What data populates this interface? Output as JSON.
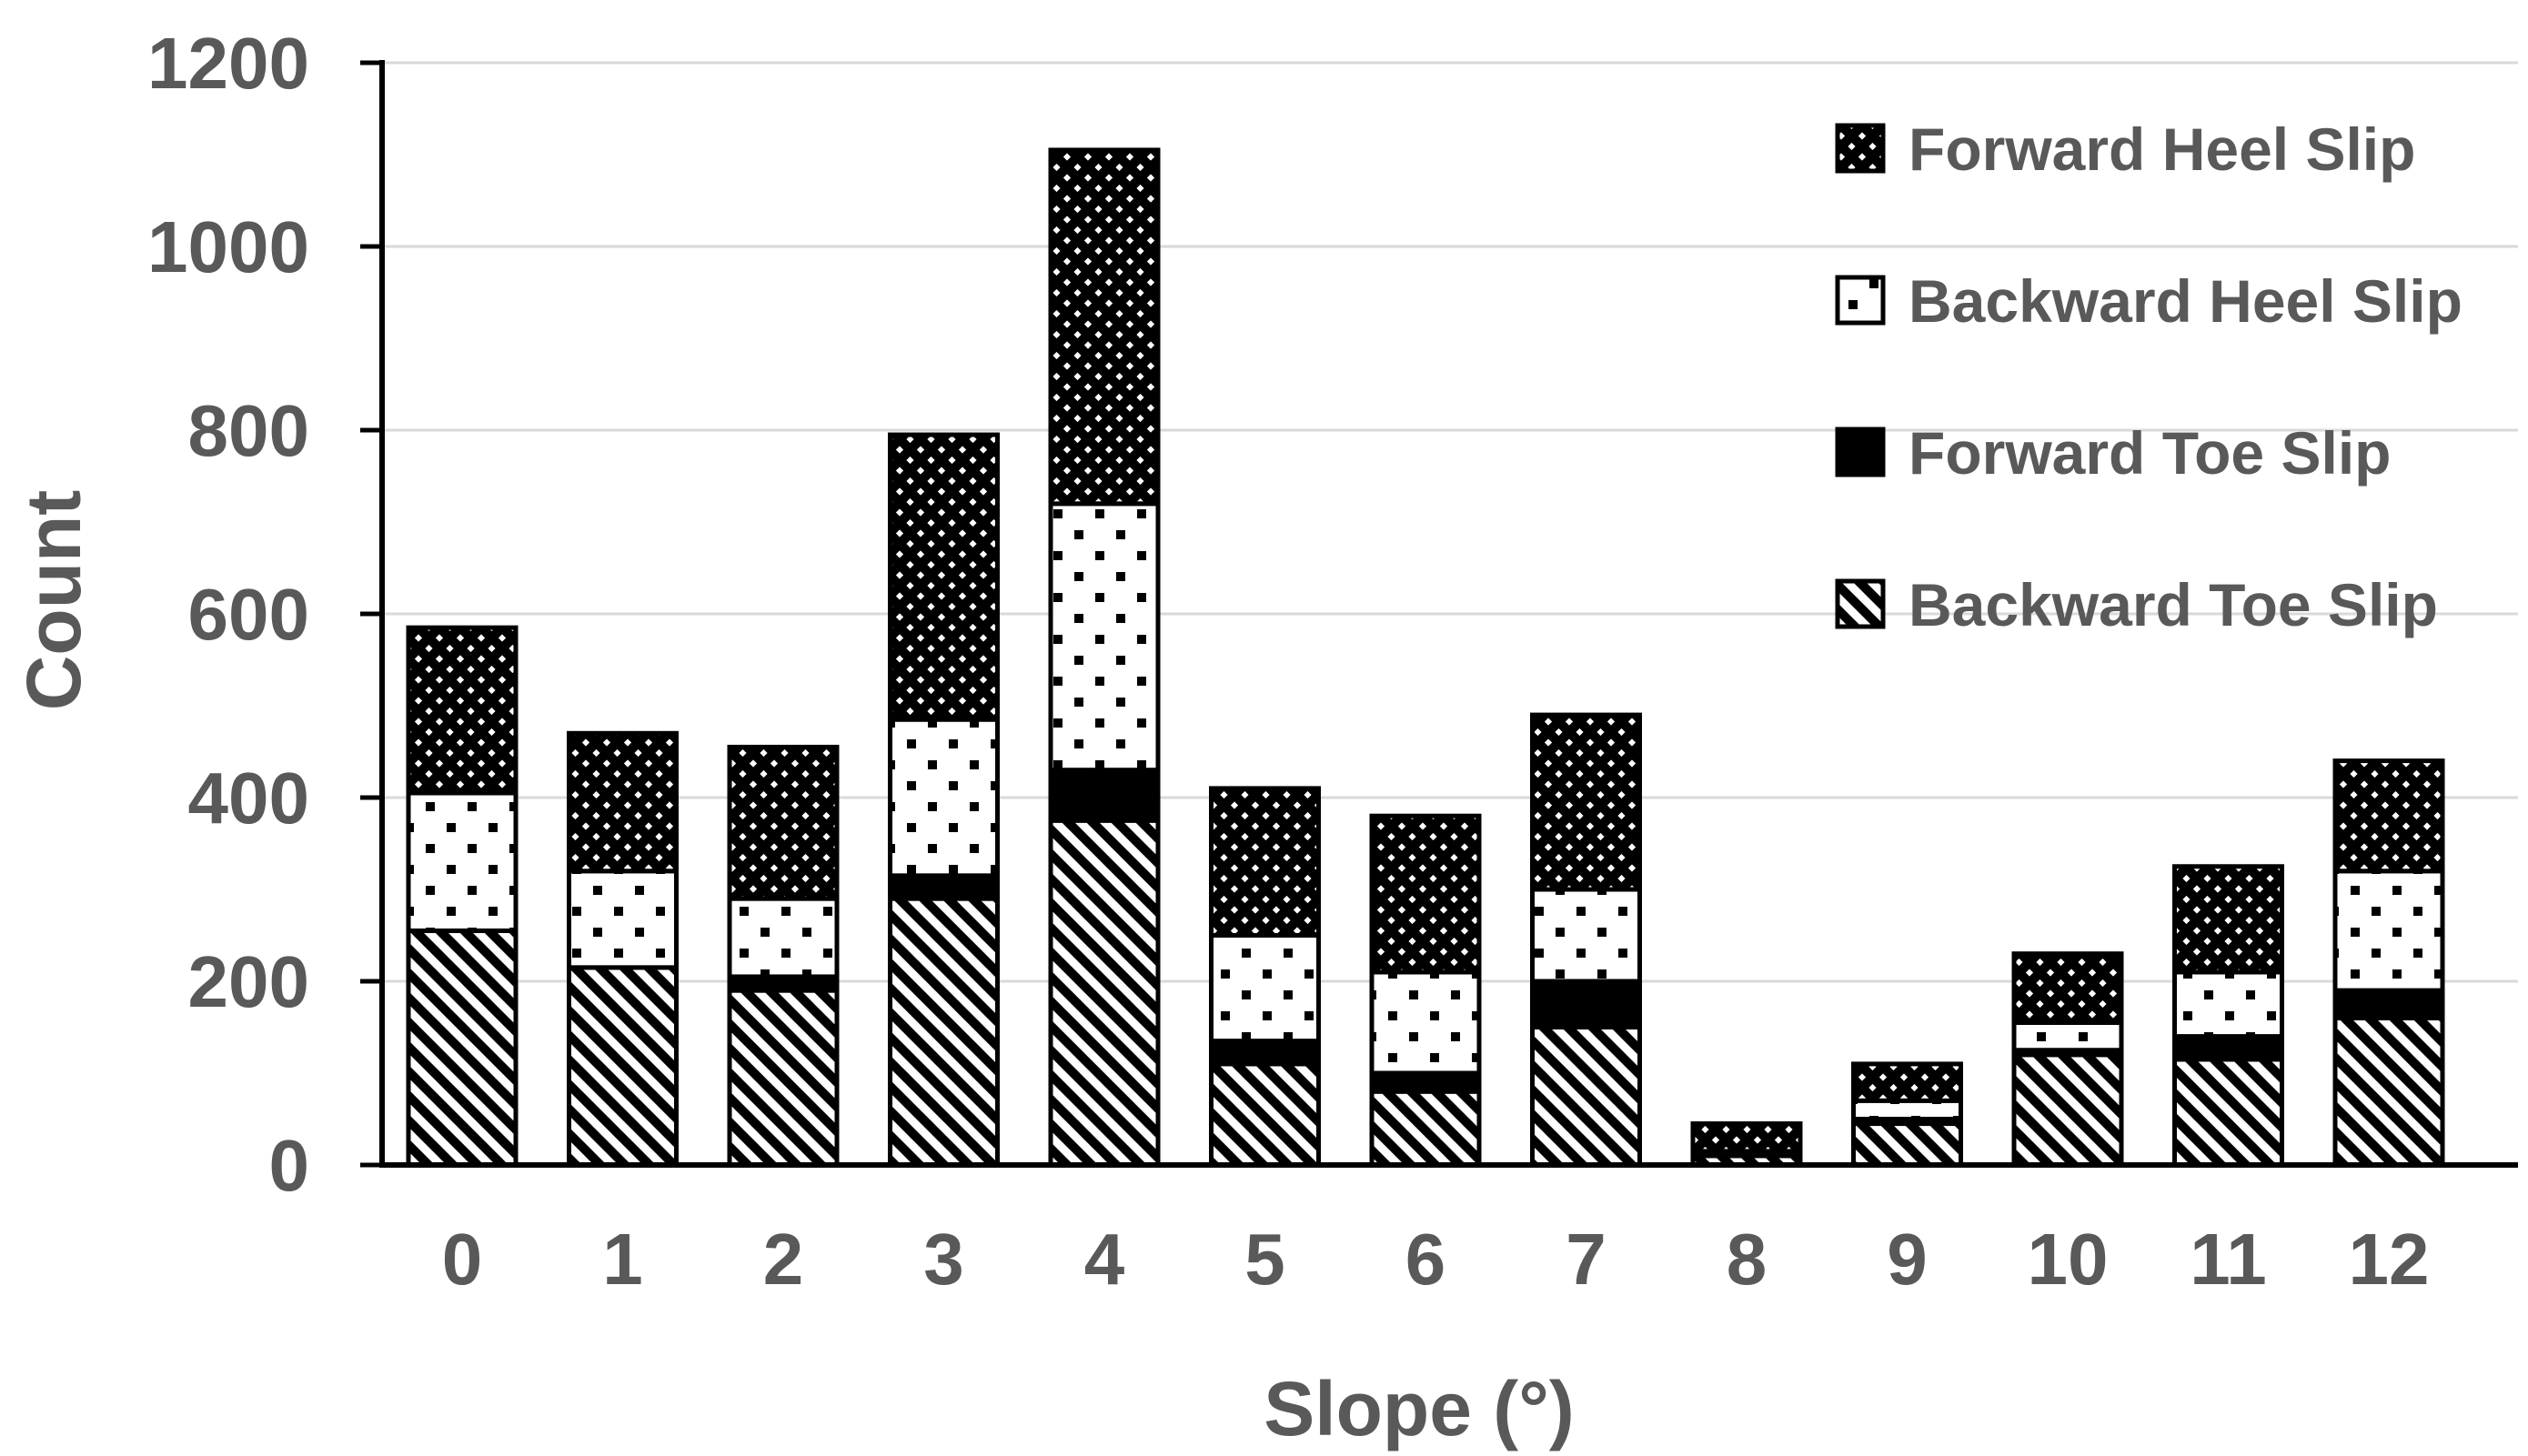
{
  "figure": {
    "ylabel": "Count",
    "xlabel": "Slope (°)",
    "y_tick_labels": [
      "0",
      "200",
      "400",
      "600",
      "800",
      "1000",
      "1200"
    ]
  },
  "legend": {
    "items": [
      {
        "label": "Forward Heel Slip",
        "pattern": "crosshatch"
      },
      {
        "label": "Backward Heel Slip",
        "pattern": "dots"
      },
      {
        "label": "Forward Toe Slip",
        "pattern": "solid"
      },
      {
        "label": "Backward Toe Slip",
        "pattern": "diagonal"
      }
    ]
  },
  "chart_data": {
    "type": "bar",
    "stacked": true,
    "title": "",
    "xlabel": "Slope (°)",
    "ylabel": "Count",
    "categories": [
      "0",
      "1",
      "2",
      "3",
      "4",
      "5",
      "6",
      "7",
      "8",
      "9",
      "10",
      "11",
      "12"
    ],
    "series": [
      {
        "name": "Forward Heel Slip",
        "pattern": "crosshatch",
        "values": [
          180,
          150,
          165,
          310,
          385,
          160,
          170,
          190,
          30,
          40,
          75,
          115,
          120
        ]
      },
      {
        "name": "Backward Heel Slip",
        "pattern": "dots",
        "values": [
          150,
          105,
          85,
          170,
          290,
          115,
          110,
          100,
          5,
          20,
          30,
          70,
          130
        ]
      },
      {
        "name": "Forward Toe Slip",
        "pattern": "solid",
        "values": [
          0,
          0,
          15,
          25,
          55,
          25,
          20,
          50,
          0,
          5,
          5,
          25,
          30
        ]
      },
      {
        "name": "Backward Toe Slip",
        "pattern": "diagonal",
        "values": [
          255,
          215,
          190,
          290,
          375,
          110,
          80,
          150,
          10,
          45,
          120,
          115,
          160
        ]
      }
    ],
    "stack_order": "bottom-to-top is reverse of series list (Backward Toe Slip at bottom)",
    "totals": [
      585,
      470,
      455,
      795,
      1105,
      410,
      380,
      490,
      45,
      110,
      230,
      325,
      440
    ],
    "ylim": [
      0,
      1200
    ],
    "ytick_interval": 200,
    "grid": true,
    "legend_position": "upper-right",
    "colors": {
      "text": "#595959",
      "gridline": "#d9d9d9",
      "axis": "#000000",
      "bar_border": "#000000",
      "background": "#ffffff"
    }
  }
}
